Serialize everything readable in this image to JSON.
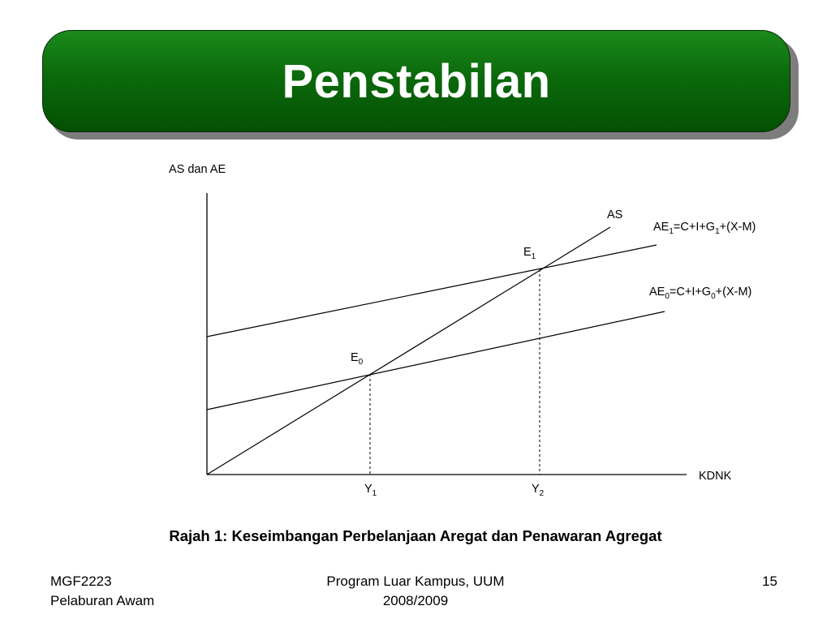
{
  "title": "Penstabilan",
  "diagram": {
    "y_axis_label": "AS dan AE",
    "x_axis_label": "KDNK",
    "curves": {
      "as": "AS",
      "ae1": {
        "base": "AE",
        "sub1": "1",
        "mid": "=C+I+G",
        "sub2": "1",
        "tail": "+(X-M)"
      },
      "ae0": {
        "base": "AE",
        "sub1": "0",
        "mid": "=C+I+G",
        "sub2": "0",
        "tail": "+(X-M)"
      }
    },
    "points": {
      "e1": {
        "base": "E",
        "sub": "1"
      },
      "e0": {
        "base": "E",
        "sub": "0"
      }
    },
    "x_ticks": {
      "y1": {
        "base": "Y",
        "sub": "1"
      },
      "y2": {
        "base": "Y",
        "sub": "2"
      }
    }
  },
  "caption": "Rajah 1:  Keseimbangan Perbelanjaan Aregat dan Penawaran Agregat",
  "footer": {
    "left_line1": "MGF2223",
    "left_line2": "Pelaburan Awam",
    "center_line1": "Program Luar Kampus, UUM",
    "center_line2": "2008/2009",
    "page_number": "15"
  }
}
